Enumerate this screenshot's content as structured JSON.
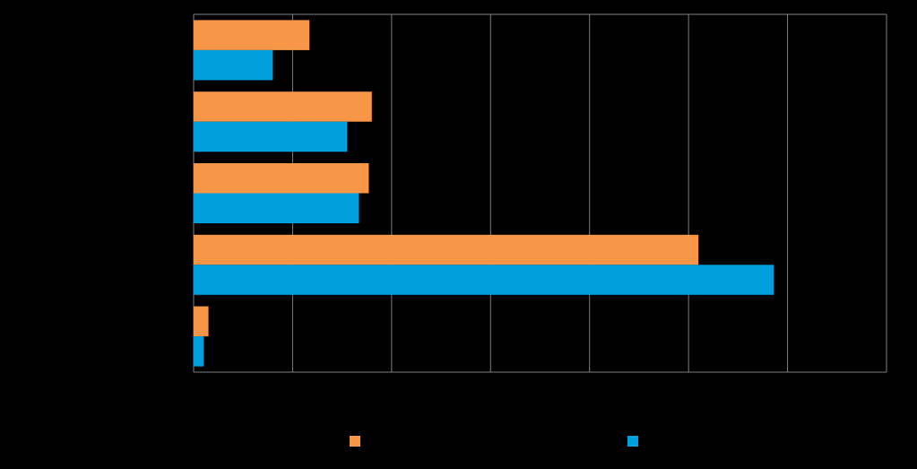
{
  "chart_data": {
    "type": "bar",
    "orientation": "horizontal",
    "title": "",
    "xlabel": "",
    "ylabel": "",
    "xlim": [
      0,
      70
    ],
    "grid": true,
    "legend_position": "bottom",
    "categories": [
      "",
      "",
      "",
      "",
      ""
    ],
    "series": [
      {
        "name": "",
        "color": "#F79646",
        "values": [
          11.7,
          18.0,
          17.7,
          51.0,
          1.5
        ]
      },
      {
        "name": "",
        "color": "#00A0DC",
        "values": [
          8.0,
          15.5,
          16.7,
          58.6,
          1.0
        ]
      }
    ]
  },
  "style": {
    "background": "#000000",
    "gridline_color": "#7f7f7f",
    "axis_color": "#7f7f7f"
  }
}
